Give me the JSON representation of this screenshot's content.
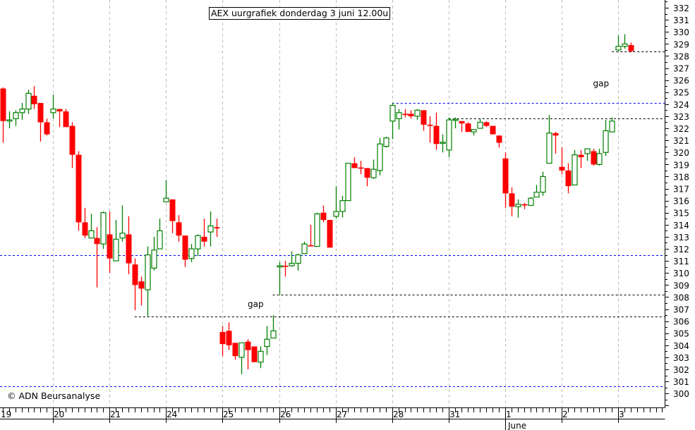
{
  "chart_data": {
    "type": "candlestick",
    "title": "AEX uurgrafiek donderdag 3 juni 12.00u",
    "credit": "© ADN Beursanalyse",
    "ylim": [
      298.8,
      332.6
    ],
    "yticks": [
      300,
      301,
      302,
      303,
      304,
      305,
      306,
      307,
      308,
      309,
      310,
      311,
      312,
      313,
      314,
      315,
      316,
      317,
      318,
      319,
      320,
      321,
      322,
      323,
      324,
      325,
      326,
      327,
      328,
      329,
      330,
      331,
      332
    ],
    "days": [
      {
        "label": "19",
        "start_slot": 0
      },
      {
        "label": "20",
        "start_slot": 9
      },
      {
        "label": "21",
        "start_slot": 18
      },
      {
        "label": "24",
        "start_slot": 27
      },
      {
        "label": "25",
        "start_slot": 36
      },
      {
        "label": "26",
        "start_slot": 45
      },
      {
        "label": "27",
        "start_slot": 54
      },
      {
        "label": "28",
        "start_slot": 63
      },
      {
        "label": "31",
        "start_slot": 72
      },
      {
        "label": "1",
        "start_slot": 81,
        "month": "June"
      },
      {
        "label": "2",
        "start_slot": 90
      },
      {
        "label": "3",
        "start_slot": 99
      }
    ],
    "first_slot": 1,
    "candles_ohlc": [
      [
        325.3,
        325.4,
        320.8,
        322.6
      ],
      [
        322.6,
        323.4,
        322.0,
        322.7
      ],
      [
        322.8,
        323.5,
        322.2,
        323.3
      ],
      [
        323.3,
        324.1,
        322.7,
        323.6
      ],
      [
        323.6,
        325.2,
        323.2,
        324.9
      ],
      [
        324.7,
        325.5,
        323.6,
        324.0
      ],
      [
        324.1,
        324.1,
        320.9,
        322.5
      ],
      [
        322.5,
        322.8,
        321.4,
        321.5
      ],
      [
        323.3,
        324.8,
        322.8,
        323.6
      ],
      [
        323.6,
        323.6,
        322.1,
        323.4
      ],
      [
        323.4,
        323.6,
        322.1,
        322.1
      ],
      [
        322.2,
        322.5,
        318.7,
        319.8
      ],
      [
        319.8,
        320.1,
        313.5,
        314.2
      ],
      [
        314.2,
        315.4,
        312.9,
        313.1
      ],
      [
        312.9,
        314.9,
        312.9,
        313.5
      ],
      [
        312.9,
        313.8,
        308.8,
        312.4
      ],
      [
        312.4,
        315.1,
        312.0,
        315.0
      ],
      [
        313.2,
        315.1,
        310.0,
        311.2
      ],
      [
        311.0,
        314.4,
        311.0,
        312.8
      ],
      [
        312.9,
        315.6,
        312.6,
        313.3
      ],
      [
        313.2,
        314.7,
        309.9,
        310.8
      ],
      [
        310.7,
        311.2,
        306.9,
        309.0
      ],
      [
        309.3,
        309.7,
        307.3,
        308.7
      ],
      [
        308.6,
        312.2,
        306.4,
        311.5
      ],
      [
        310.4,
        313.0,
        310.2,
        311.9
      ],
      [
        312.0,
        314.5,
        312.0,
        313.5
      ],
      [
        315.9,
        317.7,
        315.9,
        316.2
      ],
      [
        316.1,
        316.1,
        313.3,
        314.3
      ],
      [
        314.2,
        314.8,
        312.6,
        313.1
      ],
      [
        313.1,
        313.1,
        310.5,
        311.1
      ],
      [
        311.2,
        312.4,
        310.9,
        312.0
      ],
      [
        312.0,
        313.2,
        311.4,
        313.1
      ],
      [
        313.0,
        314.5,
        312.2,
        312.6
      ],
      [
        313.4,
        315.1,
        312.2,
        313.9
      ],
      [
        313.8,
        314.5,
        313.0,
        313.7
      ],
      [
        305.1,
        305.6,
        303.1,
        304.1
      ],
      [
        305.2,
        305.9,
        303.6,
        304.0
      ],
      [
        304.2,
        304.2,
        302.8,
        303.1
      ],
      [
        303.0,
        304.2,
        301.6,
        304.2
      ],
      [
        304.3,
        304.5,
        302.0,
        303.6
      ],
      [
        303.9,
        303.9,
        302.6,
        302.6
      ],
      [
        302.6,
        303.9,
        302.1,
        303.5
      ],
      [
        303.9,
        305.6,
        303.2,
        304.5
      ],
      [
        304.6,
        306.5,
        304.6,
        305.2
      ],
      [
        310.5,
        310.9,
        308.2,
        310.6
      ],
      [
        310.6,
        311.0,
        309.7,
        310.5
      ],
      [
        310.6,
        311.8,
        310.5,
        310.8
      ],
      [
        310.8,
        311.6,
        310.2,
        311.5
      ],
      [
        311.6,
        312.6,
        311.6,
        312.4
      ],
      [
        312.3,
        314.0,
        312.2,
        312.2
      ],
      [
        312.2,
        315.0,
        312.2,
        314.9
      ],
      [
        315.0,
        315.6,
        314.2,
        314.4
      ],
      [
        314.4,
        314.4,
        312.1,
        312.1
      ],
      [
        314.7,
        317.2,
        314.5,
        315.1
      ],
      [
        315.1,
        316.4,
        314.6,
        316.0
      ],
      [
        316.0,
        319.1,
        316.0,
        319.1
      ],
      [
        319.1,
        319.6,
        318.7,
        318.7
      ],
      [
        318.75,
        319.3,
        318.2,
        318.65
      ],
      [
        318.7,
        318.7,
        317.2,
        317.9
      ],
      [
        317.9,
        319.4,
        317.8,
        318.6
      ],
      [
        318.5,
        321.2,
        318.1,
        320.7
      ],
      [
        320.5,
        321.3,
        320.4,
        321.2
      ],
      [
        322.6,
        324.1,
        321.1,
        323.9
      ],
      [
        322.8,
        323.6,
        321.9,
        323.3
      ],
      [
        323.2,
        323.6,
        322.9,
        323.1
      ],
      [
        323.2,
        323.5,
        322.8,
        323.0
      ],
      [
        323.0,
        323.6,
        322.7,
        323.5
      ],
      [
        323.5,
        323.5,
        321.8,
        322.3
      ],
      [
        322.3,
        323.0,
        320.8,
        322.2
      ],
      [
        322.2,
        323.3,
        320.2,
        320.7
      ],
      [
        320.75,
        321.5,
        320.0,
        320.85
      ],
      [
        320.2,
        322.9,
        319.6,
        322.7
      ],
      [
        322.65,
        322.9,
        322.0,
        322.75
      ],
      [
        322.6,
        322.6,
        321.7,
        322.4
      ],
      [
        322.4,
        322.5,
        321.7,
        321.7
      ],
      [
        321.7,
        321.9,
        321.4,
        321.9
      ],
      [
        322.0,
        322.8,
        322.0,
        322.5
      ],
      [
        322.5,
        322.6,
        322.1,
        322.2
      ],
      [
        322.2,
        322.2,
        321.5,
        321.5
      ],
      [
        321.4,
        321.4,
        320.4,
        320.8
      ],
      [
        319.5,
        320.0,
        315.4,
        316.6
      ],
      [
        316.6,
        317.1,
        314.7,
        315.5
      ],
      [
        315.5,
        316.1,
        314.6,
        315.7
      ],
      [
        315.7,
        315.8,
        315.3,
        315.6
      ],
      [
        315.6,
        316.3,
        315.6,
        316.2
      ],
      [
        316.3,
        317.3,
        316.3,
        316.7
      ],
      [
        316.7,
        318.4,
        316.4,
        318.0
      ],
      [
        319.1,
        323.1,
        319.1,
        321.6
      ],
      [
        321.6,
        321.7,
        319.9,
        321.4
      ],
      [
        318.8,
        320.4,
        318.2,
        318.5
      ],
      [
        318.5,
        319.1,
        316.6,
        317.2
      ],
      [
        317.3,
        320.2,
        317.3,
        319.8
      ],
      [
        319.8,
        320.2,
        318.7,
        319.6
      ],
      [
        319.9,
        320.3,
        319.3,
        320.3
      ],
      [
        320.1,
        320.3,
        318.9,
        319.0
      ],
      [
        319.0,
        320.3,
        318.9,
        319.9
      ],
      [
        320.0,
        322.7,
        319.7,
        321.8
      ],
      [
        321.7,
        322.9,
        321.7,
        322.6
      ],
      [
        328.5,
        329.7,
        328.4,
        328.8
      ],
      [
        328.8,
        329.8,
        328.6,
        329.0
      ],
      [
        328.9,
        329.1,
        328.3,
        328.4
      ]
    ],
    "hlines": [
      {
        "value": 324.1,
        "from_slot": 63,
        "color": "#0000ff"
      },
      {
        "value": 311.5,
        "from_slot": 0,
        "color": "#0000ff"
      },
      {
        "value": 300.6,
        "from_slot": 0,
        "color": "#0000ff"
      },
      {
        "value": 322.8,
        "from_slot": 72,
        "color": "#000000"
      },
      {
        "value": 328.4,
        "from_slot": 98,
        "color": "#000000"
      },
      {
        "value": 308.2,
        "from_slot": 44,
        "color": "#000000"
      },
      {
        "value": 306.4,
        "from_slot": 22,
        "color": "#000000"
      }
    ],
    "annotations": [
      {
        "text": "gap",
        "slot": 40,
        "value": 307.4
      },
      {
        "text": "gap",
        "slot": 95,
        "value": 325.7
      }
    ],
    "colors": {
      "up": "#008000",
      "down": "#ff0000",
      "grid": "#bbbbbb"
    }
  }
}
